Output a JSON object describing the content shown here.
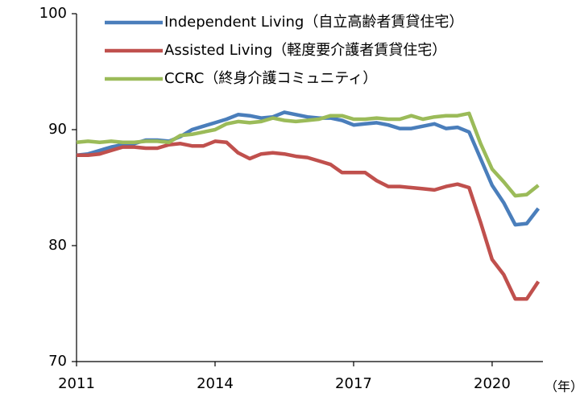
{
  "chart_data": {
    "type": "line",
    "x": [
      2011,
      2011.25,
      2011.5,
      2011.75,
      2012,
      2012.25,
      2012.5,
      2012.75,
      2013,
      2013.25,
      2013.5,
      2013.75,
      2014,
      2014.25,
      2014.5,
      2014.75,
      2015,
      2015.25,
      2015.5,
      2015.75,
      2016,
      2016.25,
      2016.5,
      2016.75,
      2017,
      2017.25,
      2017.5,
      2017.75,
      2018,
      2018.25,
      2018.5,
      2018.75,
      2019,
      2019.25,
      2019.5,
      2019.75,
      2020,
      2020.25,
      2020.5,
      2020.75,
      2021
    ],
    "series": [
      {
        "name": "Independent Living（自立高齢者賃貸住宅）",
        "color": "#4a7ebb",
        "values": [
          87.8,
          87.9,
          88.2,
          88.5,
          88.7,
          88.8,
          89.1,
          89.1,
          89.0,
          89.4,
          90.0,
          90.3,
          90.6,
          90.9,
          91.3,
          91.2,
          91.0,
          91.1,
          91.5,
          91.3,
          91.1,
          91.0,
          91.0,
          90.8,
          90.4,
          90.5,
          90.6,
          90.4,
          90.1,
          90.1,
          90.3,
          90.5,
          90.1,
          90.2,
          89.8,
          87.5,
          85.2,
          83.7,
          81.8,
          81.9,
          83.2
        ]
      },
      {
        "name": "Assisted Living（軽度要介護者賃貸住宅）",
        "color": "#c0504d",
        "values": [
          87.8,
          87.8,
          87.9,
          88.2,
          88.5,
          88.5,
          88.4,
          88.4,
          88.7,
          88.8,
          88.6,
          88.6,
          89.0,
          88.9,
          88.0,
          87.5,
          87.9,
          88.0,
          87.9,
          87.7,
          87.6,
          87.3,
          87.0,
          86.3,
          86.3,
          86.3,
          85.6,
          85.1,
          85.1,
          85.0,
          84.9,
          84.8,
          85.1,
          85.3,
          85.0,
          82.0,
          78.8,
          77.5,
          75.4,
          75.4,
          76.9
        ]
      },
      {
        "name": "CCRC（終身介護コミュニティ）",
        "color": "#9bbb59",
        "values": [
          88.9,
          89.0,
          88.9,
          89.0,
          88.9,
          88.9,
          89.0,
          89.0,
          88.9,
          89.5,
          89.6,
          89.8,
          90.0,
          90.5,
          90.7,
          90.6,
          90.7,
          91.0,
          90.8,
          90.7,
          90.8,
          90.9,
          91.2,
          91.2,
          90.9,
          90.9,
          91.0,
          90.9,
          90.9,
          91.2,
          90.9,
          91.1,
          91.2,
          91.2,
          91.4,
          88.8,
          86.6,
          85.5,
          84.3,
          84.4,
          85.2
        ]
      }
    ],
    "xlabel": "（年）",
    "xlim": [
      2011,
      2021.1
    ],
    "xticks": [
      2011,
      2014,
      2017,
      2020
    ],
    "ylim": [
      70,
      100
    ],
    "yticks": [
      70,
      80,
      90,
      100
    ],
    "grid": false,
    "legend": "upper left"
  }
}
